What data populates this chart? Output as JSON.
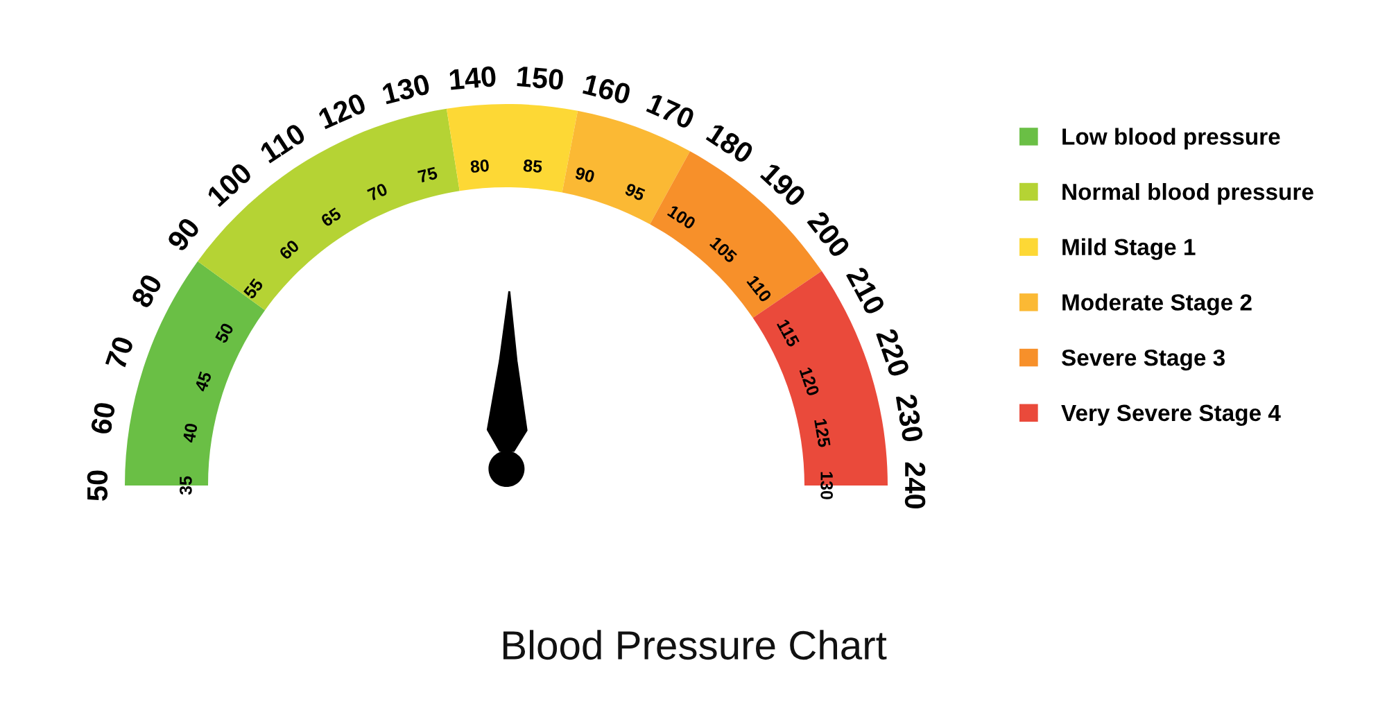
{
  "chart_data": {
    "type": "donut",
    "title": "Blood Pressure Chart",
    "categories": [
      "Low blood pressure",
      "Normal blood pressure",
      "Mild Stage 1",
      "Moderate Stage 2",
      "Severe Stage 3",
      "Very Severe Stage 4"
    ],
    "values": [
      20,
      25,
      11,
      10,
      15,
      19
    ],
    "colors": [
      "#6abf45",
      "#b5d334",
      "#fdd835",
      "#fbb934",
      "#f7902a",
      "#ea4a3b"
    ],
    "needle": "Mild Stage 1",
    "annotations": [
      "50",
      "60",
      "70",
      "80",
      "90",
      "100",
      "110",
      "120",
      "130",
      "140",
      "150",
      "160",
      "170",
      "180",
      "190",
      "200",
      "210",
      "220",
      "230",
      "240",
      "35",
      "40",
      "45",
      "50",
      "55",
      "60",
      "65",
      "70",
      "75",
      "80",
      "85",
      "90",
      "95",
      "100",
      "105",
      "110",
      "115",
      "120",
      "125",
      "130"
    ],
    "legend": "right"
  }
}
